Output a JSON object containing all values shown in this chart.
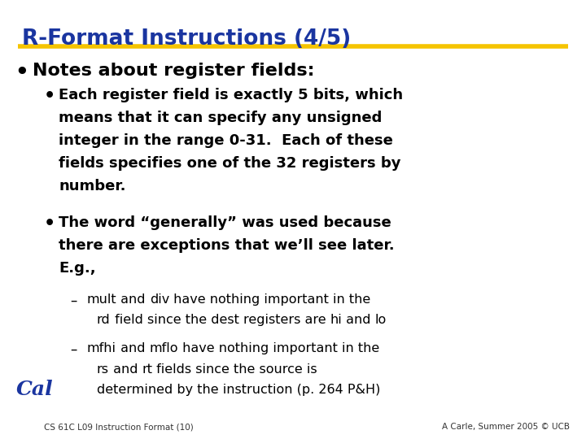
{
  "title": "R-Format Instructions (4/5)",
  "title_color": "#1a35a0",
  "title_underline_color": "#f5c400",
  "background_color": "#ffffff",
  "text_color": "#000000",
  "footer_left": "CS 61C L09 Instruction Format (10)",
  "footer_right": "A Carle, Summer 2005 © UCB",
  "footer_color": "#333333"
}
